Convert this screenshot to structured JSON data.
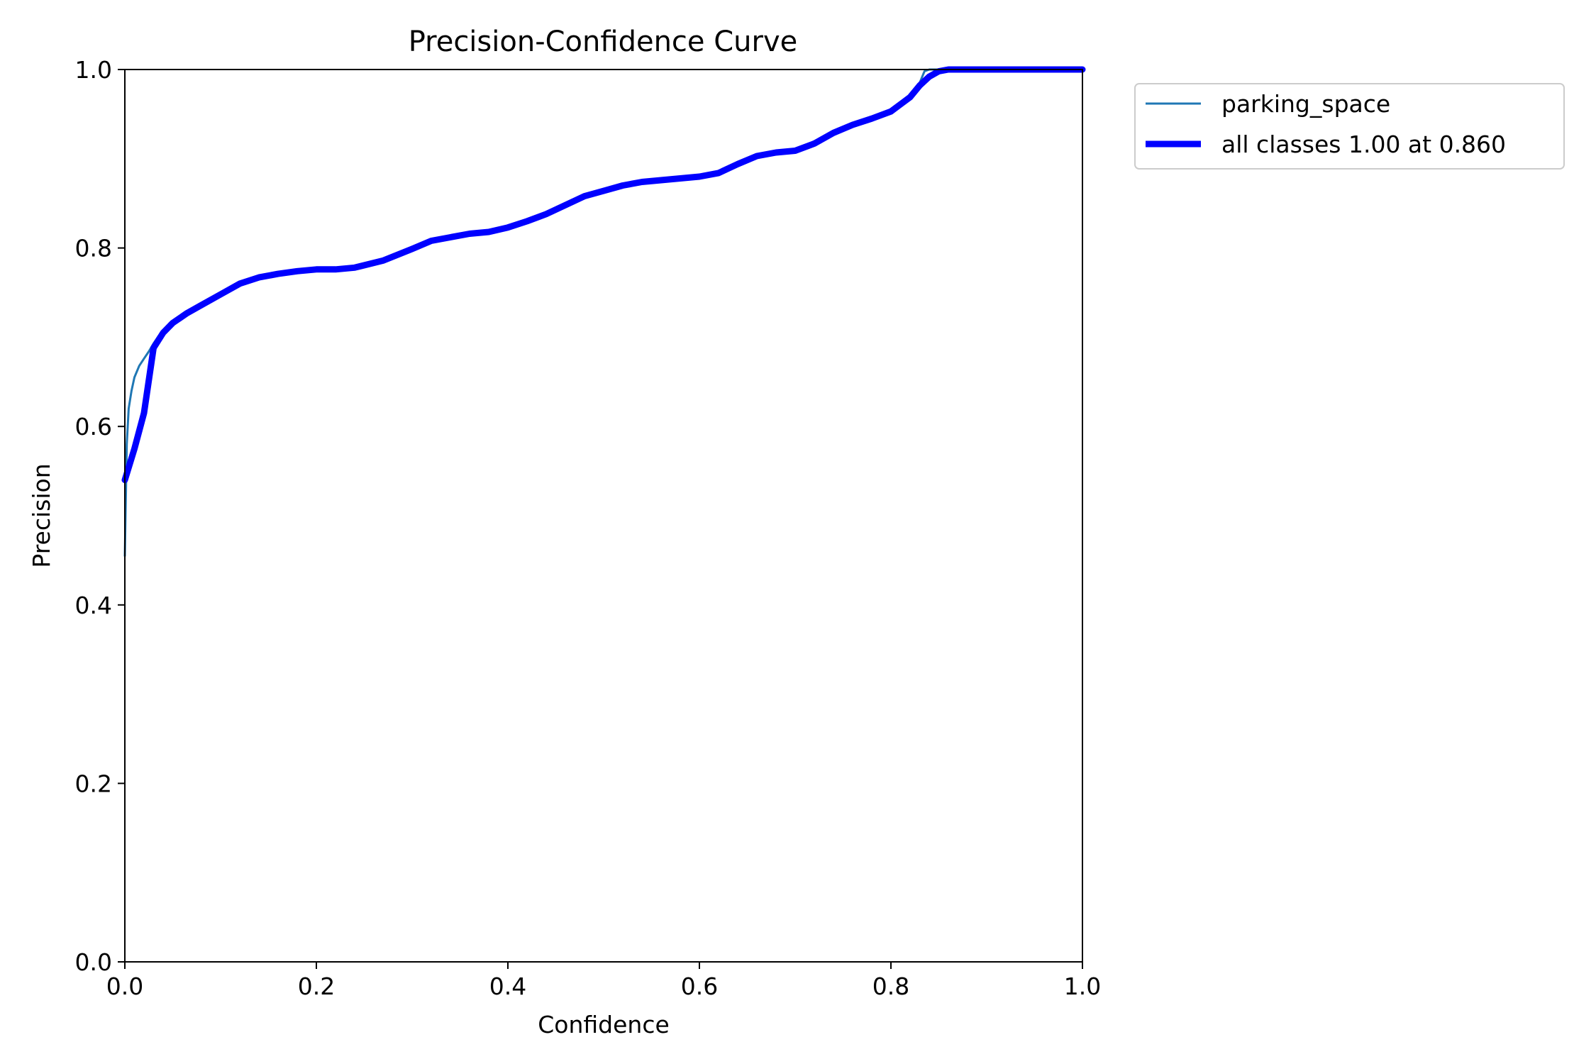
{
  "chart_data": {
    "type": "line",
    "title": "Precision-Confidence Curve",
    "xlabel": "Confidence",
    "ylabel": "Precision",
    "xlim": [
      0,
      1
    ],
    "ylim": [
      0,
      1
    ],
    "x_ticks": [
      0.0,
      0.2,
      0.4,
      0.6,
      0.8,
      1.0
    ],
    "x_tick_labels": [
      "0.0",
      "0.2",
      "0.4",
      "0.6",
      "0.8",
      "1.0"
    ],
    "y_ticks": [
      0.0,
      0.2,
      0.4,
      0.6,
      0.8,
      1.0
    ],
    "y_tick_labels": [
      "0.0",
      "0.2",
      "0.4",
      "0.6",
      "0.8",
      "1.0"
    ],
    "grid": false,
    "legend_placement": "outside-top-right",
    "series": [
      {
        "name": "parking_space",
        "color": "#1f77b4",
        "x": [
          0.0,
          0.002,
          0.004,
          0.007,
          0.01,
          0.015,
          0.02,
          0.025,
          0.03,
          0.035,
          0.04,
          0.045,
          0.05,
          0.06,
          0.07,
          0.08,
          0.1,
          0.12,
          0.14,
          0.16,
          0.18,
          0.2,
          0.22,
          0.24,
          0.27,
          0.3,
          0.32,
          0.34,
          0.36,
          0.38,
          0.4,
          0.42,
          0.44,
          0.46,
          0.48,
          0.5,
          0.52,
          0.54,
          0.56,
          0.58,
          0.6,
          0.62,
          0.64,
          0.66,
          0.68,
          0.7,
          0.72,
          0.74,
          0.76,
          0.78,
          0.8,
          0.82,
          0.83,
          0.835,
          0.84,
          0.85,
          0.86,
          0.9,
          0.95,
          1.0
        ],
        "y": [
          0.455,
          0.58,
          0.62,
          0.64,
          0.655,
          0.668,
          0.676,
          0.684,
          0.693,
          0.701,
          0.708,
          0.713,
          0.717,
          0.725,
          0.731,
          0.737,
          0.749,
          0.761,
          0.768,
          0.772,
          0.775,
          0.777,
          0.777,
          0.779,
          0.787,
          0.8,
          0.808,
          0.812,
          0.816,
          0.818,
          0.823,
          0.83,
          0.838,
          0.848,
          0.858,
          0.864,
          0.87,
          0.874,
          0.876,
          0.878,
          0.88,
          0.884,
          0.894,
          0.905,
          0.907,
          0.91,
          0.919,
          0.93,
          0.938,
          0.945,
          0.952,
          0.967,
          0.985,
          0.998,
          1.0,
          1.0,
          1.0,
          1.0,
          1.0,
          1.0
        ]
      },
      {
        "name": "all classes 1.00 at 0.860",
        "color": "#0000ff",
        "x": [
          0.0,
          0.01,
          0.02,
          0.03,
          0.04,
          0.05,
          0.065,
          0.08,
          0.1,
          0.12,
          0.14,
          0.16,
          0.18,
          0.2,
          0.22,
          0.24,
          0.27,
          0.3,
          0.32,
          0.34,
          0.36,
          0.38,
          0.4,
          0.42,
          0.44,
          0.46,
          0.48,
          0.5,
          0.52,
          0.54,
          0.56,
          0.58,
          0.6,
          0.62,
          0.64,
          0.66,
          0.68,
          0.7,
          0.72,
          0.74,
          0.76,
          0.78,
          0.8,
          0.82,
          0.83,
          0.84,
          0.85,
          0.86,
          0.9,
          0.95,
          1.0
        ],
        "y": [
          0.54,
          0.575,
          0.615,
          0.688,
          0.705,
          0.716,
          0.727,
          0.736,
          0.748,
          0.76,
          0.767,
          0.771,
          0.774,
          0.776,
          0.776,
          0.778,
          0.786,
          0.799,
          0.808,
          0.812,
          0.816,
          0.818,
          0.823,
          0.83,
          0.838,
          0.848,
          0.858,
          0.864,
          0.87,
          0.874,
          0.876,
          0.878,
          0.88,
          0.884,
          0.894,
          0.903,
          0.907,
          0.909,
          0.917,
          0.929,
          0.938,
          0.945,
          0.953,
          0.969,
          0.982,
          0.992,
          0.998,
          1.0,
          1.0,
          1.0,
          1.0
        ]
      }
    ]
  }
}
